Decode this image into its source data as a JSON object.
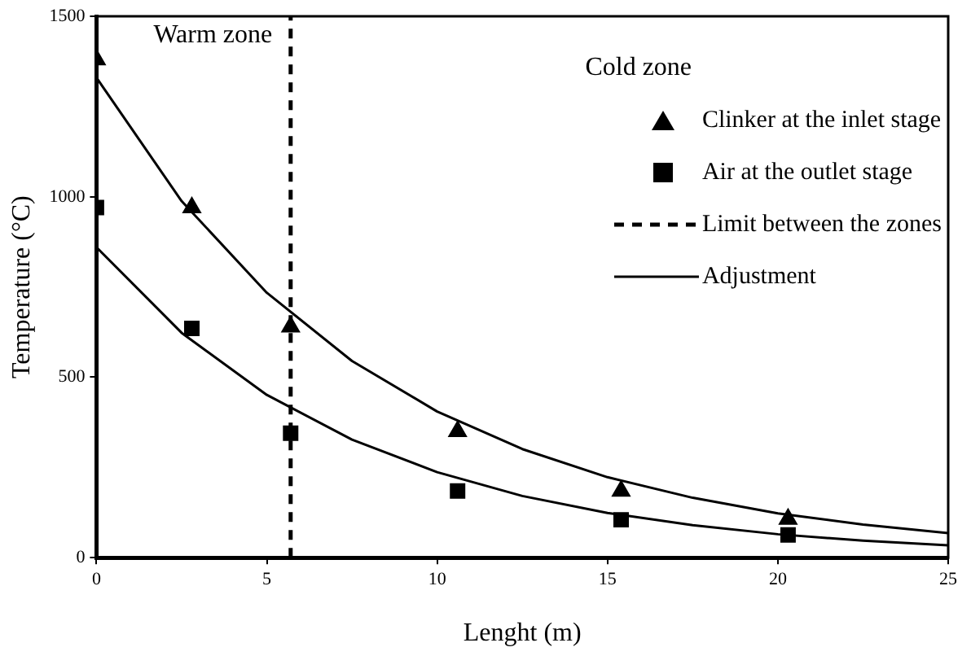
{
  "chart_data": {
    "type": "scatter",
    "xlabel": "Lenght (m)",
    "ylabel": "Temperature (°C)",
    "xlim": [
      0,
      25
    ],
    "ylim": [
      0,
      1500
    ],
    "xticks": [
      0,
      5,
      10,
      15,
      20,
      25
    ],
    "yticks": [
      0,
      500,
      1000,
      1500
    ],
    "grid": false,
    "legend": "top right",
    "annotations": [
      "Warm zone",
      "Cold zone"
    ],
    "series": [
      {
        "name": "Clinker at the inlet stage",
        "marker": "triangle",
        "color": "#000000",
        "x": [
          0,
          2.8,
          5.7,
          10.6,
          15.4,
          20.3
        ],
        "values": [
          1380,
          970,
          640,
          350,
          185,
          107
        ]
      },
      {
        "name": "Air at the outlet stage",
        "marker": "square",
        "color": "#000000",
        "x": [
          0,
          2.8,
          5.7,
          10.6,
          15.4,
          20.3
        ],
        "values": [
          970,
          635,
          345,
          185,
          105,
          63
        ]
      },
      {
        "name": "Limit between the zones",
        "type": "line",
        "marker": "none",
        "line_style": "dashed",
        "color": "#000000",
        "x": [
          5.7,
          5.7
        ],
        "values": [
          0,
          1500
        ]
      },
      {
        "name": "Adjustment",
        "type": "line",
        "marker": "none",
        "line_style": "solid",
        "color": "#000000",
        "x": [
          0,
          2.5,
          5,
          7.5,
          10,
          12.5,
          15,
          17.5,
          20,
          22.5,
          25
        ],
        "values": [
          1330,
          988,
          734,
          545,
          405,
          301,
          223,
          166,
          123,
          92,
          68
        ]
      },
      {
        "type": "line",
        "marker": "none",
        "line_style": "solid",
        "color": "#000000",
        "x": [
          0,
          2.5,
          5,
          7.5,
          10,
          12.5,
          15,
          17.5,
          20,
          22.5,
          25
        ],
        "values": [
          860,
          623,
          451,
          327,
          237,
          171,
          124,
          90,
          65,
          47,
          34
        ]
      }
    ]
  }
}
